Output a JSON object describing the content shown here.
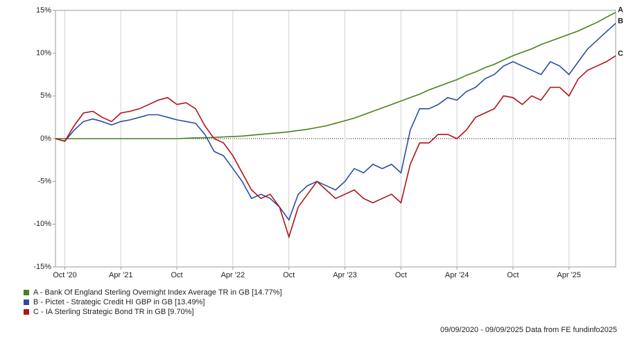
{
  "chart_data": {
    "type": "line",
    "x": [
      "2020-09",
      "2020-10",
      "2020-11",
      "2020-12",
      "2021-01",
      "2021-02",
      "2021-03",
      "2021-04",
      "2021-05",
      "2021-06",
      "2021-07",
      "2021-08",
      "2021-09",
      "2021-10",
      "2021-11",
      "2021-12",
      "2022-01",
      "2022-02",
      "2022-03",
      "2022-04",
      "2022-05",
      "2022-06",
      "2022-07",
      "2022-08",
      "2022-09",
      "2022-10",
      "2022-11",
      "2022-12",
      "2023-01",
      "2023-02",
      "2023-03",
      "2023-04",
      "2023-05",
      "2023-06",
      "2023-07",
      "2023-08",
      "2023-09",
      "2023-10",
      "2023-11",
      "2023-12",
      "2024-01",
      "2024-02",
      "2024-03",
      "2024-04",
      "2024-05",
      "2024-06",
      "2024-07",
      "2024-08",
      "2024-09",
      "2024-10",
      "2024-11",
      "2024-12",
      "2025-01",
      "2025-02",
      "2025-03",
      "2025-04",
      "2025-05",
      "2025-06",
      "2025-07",
      "2025-08",
      "2025-09"
    ],
    "series": [
      {
        "name": "A - Bank Of England Sterling Overnight Index Average TR in GB [14.77%]",
        "end_label": "A",
        "color": "#4a7f1c",
        "values": [
          0,
          0,
          0,
          0,
          0,
          0,
          0,
          0,
          0,
          0,
          0,
          0,
          0,
          0,
          0.05,
          0.1,
          0.1,
          0.15,
          0.2,
          0.25,
          0.3,
          0.4,
          0.5,
          0.6,
          0.7,
          0.8,
          0.95,
          1.1,
          1.3,
          1.5,
          1.8,
          2.1,
          2.4,
          2.8,
          3.2,
          3.6,
          4.0,
          4.4,
          4.8,
          5.2,
          5.7,
          6.1,
          6.5,
          6.9,
          7.4,
          7.8,
          8.3,
          8.7,
          9.2,
          9.7,
          10.1,
          10.5,
          11.0,
          11.4,
          11.8,
          12.2,
          12.6,
          13.1,
          13.6,
          14.2,
          14.77
        ]
      },
      {
        "name": "B - Pictet - Strategic Credit HI GBP in GB [13.49%]",
        "end_label": "B",
        "color": "#2b4da0",
        "values": [
          0,
          -0.3,
          1.0,
          2.0,
          2.3,
          2.0,
          1.6,
          2.0,
          2.2,
          2.5,
          2.8,
          2.8,
          2.5,
          2.2,
          2.0,
          1.8,
          0.5,
          -1.5,
          -2.0,
          -3.5,
          -5.0,
          -7.0,
          -6.5,
          -7.0,
          -8.0,
          -9.5,
          -6.5,
          -5.5,
          -5.0,
          -5.5,
          -6.0,
          -5.0,
          -3.5,
          -4.0,
          -3.0,
          -3.5,
          -3.0,
          -4.0,
          1.0,
          3.5,
          3.5,
          4.0,
          4.8,
          4.5,
          5.5,
          6.0,
          7.0,
          7.5,
          8.5,
          9.0,
          8.5,
          8.0,
          7.5,
          9.0,
          8.5,
          7.5,
          9.0,
          10.5,
          11.5,
          12.5,
          13.49
        ]
      },
      {
        "name": "C - IA Sterling Strategic Bond TR in GB [9.70%]",
        "end_label": "C",
        "color": "#b0121b",
        "values": [
          0,
          -0.3,
          1.5,
          3.0,
          3.2,
          2.5,
          2.0,
          3.0,
          3.2,
          3.5,
          4.0,
          4.5,
          4.8,
          4.0,
          4.2,
          3.5,
          1.5,
          0.0,
          -0.5,
          -2.0,
          -4.0,
          -6.0,
          -7.0,
          -6.5,
          -8.0,
          -11.5,
          -8.0,
          -6.5,
          -5.0,
          -6.0,
          -7.0,
          -6.5,
          -6.0,
          -7.0,
          -7.5,
          -7.0,
          -6.5,
          -7.5,
          -3.0,
          -0.5,
          -0.5,
          0.5,
          0.5,
          0.0,
          1.0,
          2.5,
          3.0,
          3.5,
          5.0,
          4.8,
          4.0,
          5.0,
          4.5,
          6.0,
          6.0,
          5.0,
          7.0,
          8.0,
          8.5,
          9.0,
          9.7
        ]
      }
    ],
    "ylim": [
      -15,
      15
    ],
    "yticks": [
      {
        "value": -15,
        "label": "-15%"
      },
      {
        "value": -10,
        "label": "-10%"
      },
      {
        "value": -5,
        "label": "-5%"
      },
      {
        "value": 0,
        "label": "0%"
      },
      {
        "value": 5,
        "label": "5%"
      },
      {
        "value": 10,
        "label": "10%"
      },
      {
        "value": 15,
        "label": "15%"
      }
    ],
    "xticks": [
      {
        "value": "2020-10",
        "label": "Oct '20"
      },
      {
        "value": "2021-04",
        "label": "Apr '21"
      },
      {
        "value": "2021-10",
        "label": "Oct"
      },
      {
        "value": "2022-04",
        "label": "Apr '22"
      },
      {
        "value": "2022-10",
        "label": "Oct"
      },
      {
        "value": "2023-04",
        "label": "Apr '23"
      },
      {
        "value": "2023-10",
        "label": "Oct"
      },
      {
        "value": "2024-04",
        "label": "Apr '24"
      },
      {
        "value": "2024-10",
        "label": "Oct"
      },
      {
        "value": "2025-04",
        "label": "Apr '25"
      }
    ],
    "grid": "x",
    "footer": "09/09/2020 - 09/09/2025 Data from FE fundinfo2025"
  }
}
